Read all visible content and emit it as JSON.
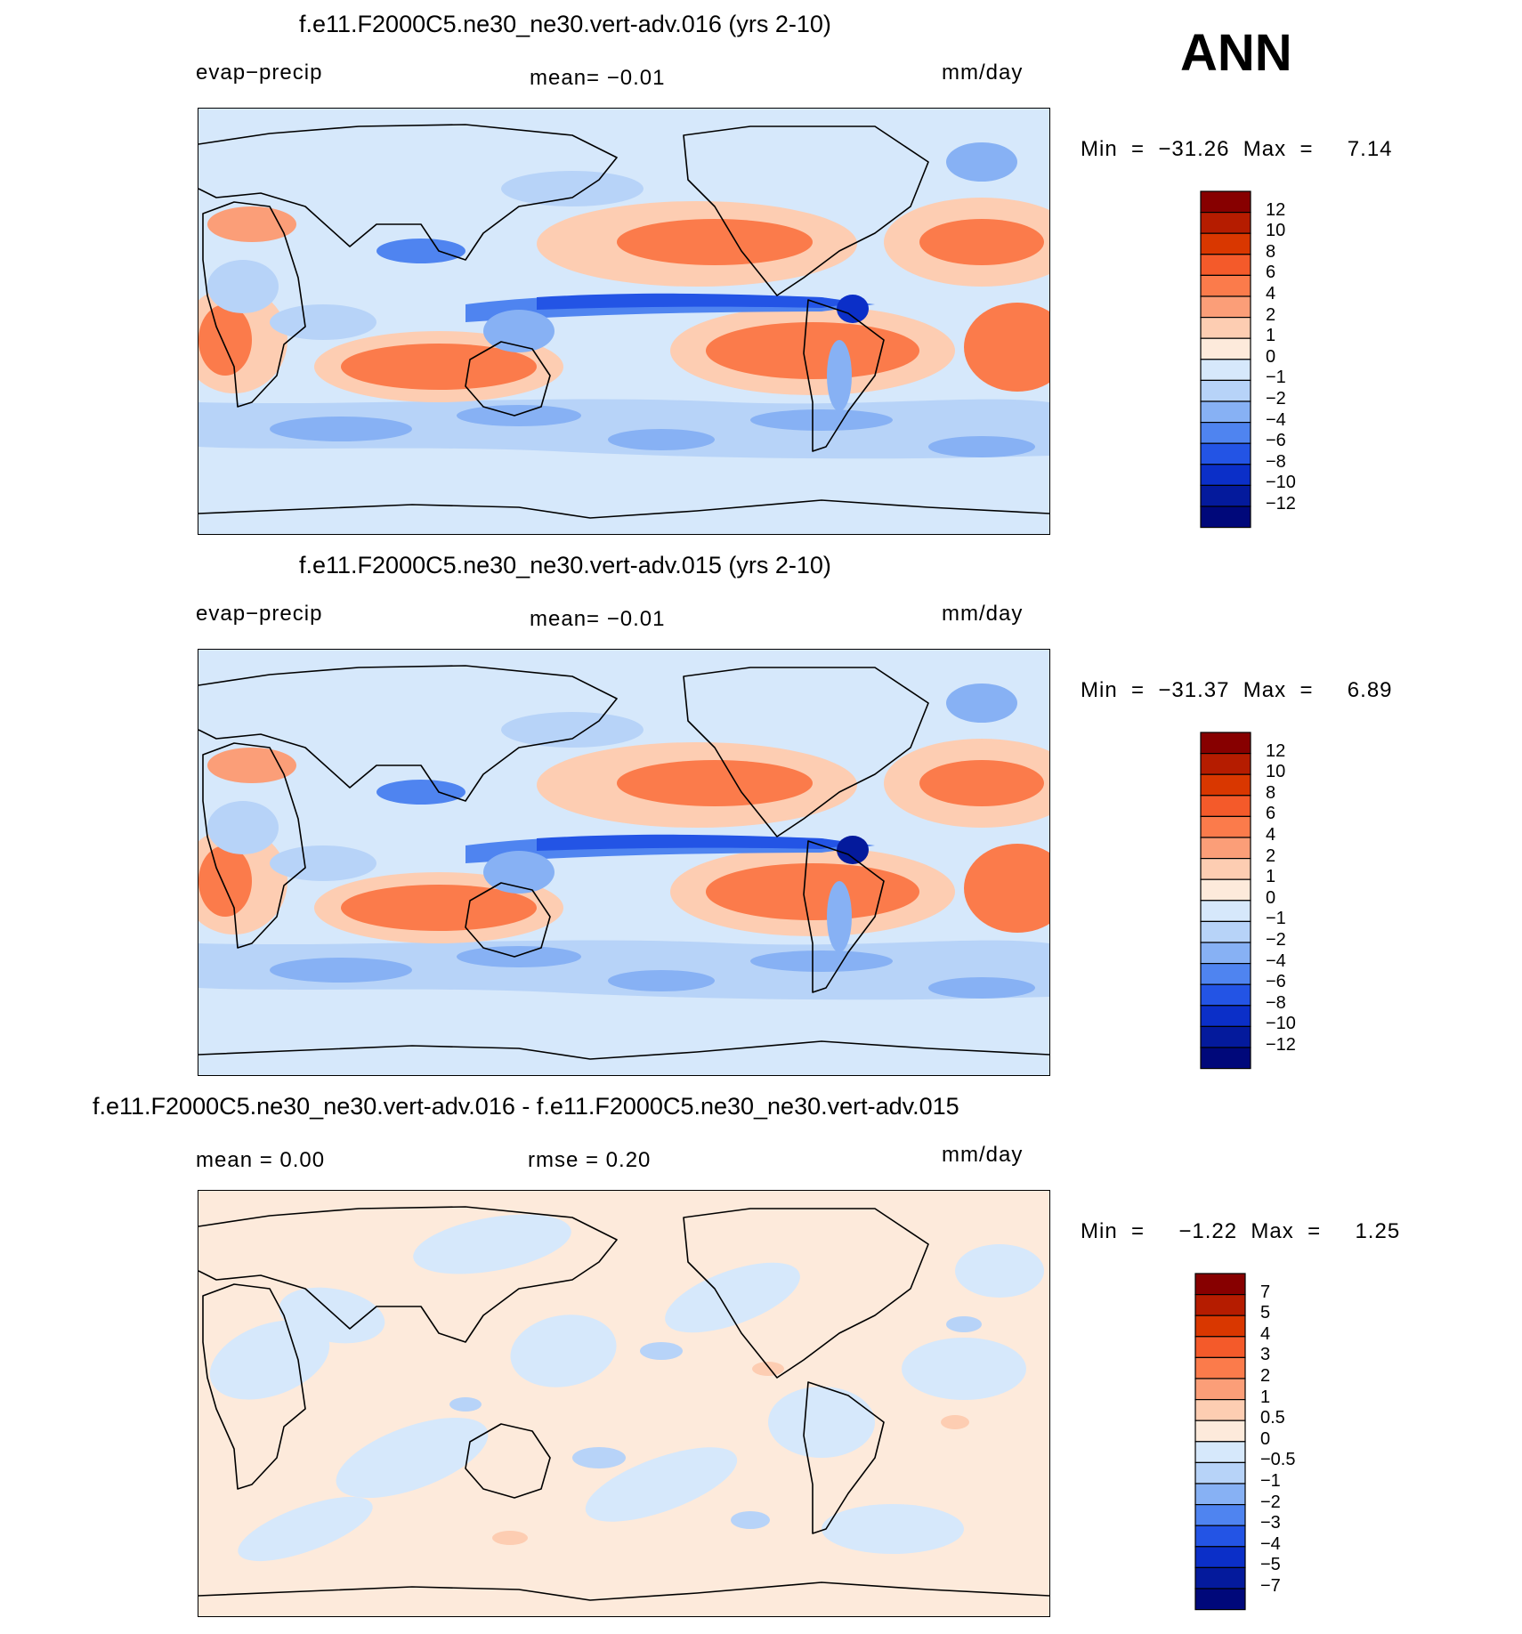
{
  "season": "ANN",
  "panels": [
    {
      "title": "f.e11.F2000C5.ne30_ne30.vert-adv.016 (yrs 2-10)",
      "left_label": "evap−precip",
      "center_label": "mean=   −0.01",
      "right_label": "mm/day",
      "minmax": "Min  =  −31.26  Max  =     7.14",
      "colorbar_labels": [
        "12",
        "10",
        "8",
        "6",
        "4",
        "2",
        "1",
        "0",
        "−1",
        "−2",
        "−4",
        "−6",
        "−8",
        "−10",
        "−12"
      ]
    },
    {
      "title": "f.e11.F2000C5.ne30_ne30.vert-adv.015 (yrs 2-10)",
      "left_label": "evap−precip",
      "center_label": "mean=   −0.01",
      "right_label": "mm/day",
      "minmax": "Min  =  −31.37  Max  =     6.89",
      "colorbar_labels": [
        "12",
        "10",
        "8",
        "6",
        "4",
        "2",
        "1",
        "0",
        "−1",
        "−2",
        "−4",
        "−6",
        "−8",
        "−10",
        "−12"
      ]
    },
    {
      "title": "f.e11.F2000C5.ne30_ne30.vert-adv.016 - f.e11.F2000C5.ne30_ne30.vert-adv.015",
      "left_label": "mean  =     0.00",
      "center_label": "rmse  =     0.20",
      "right_label": "mm/day",
      "minmax": "Min  =     −1.22  Max  =     1.25",
      "colorbar_labels": [
        "7",
        "5",
        "4",
        "3",
        "2",
        "1",
        "0.5",
        "0",
        "−0.5",
        "−1",
        "−2",
        "−3",
        "−4",
        "−5",
        "−7"
      ]
    }
  ],
  "colors": {
    "abs_scale": [
      "#870000",
      "#b51c00",
      "#d93700",
      "#f45a2a",
      "#fb7b4b",
      "#fb9e78",
      "#fdcdb2",
      "#fdeadb",
      "#d6e8fb",
      "#b7d3f8",
      "#87b1f4",
      "#4f84f0",
      "#2354e5",
      "#0b2fc8",
      "#041a9c",
      "#00087a"
    ],
    "diff_scale": [
      "#870000",
      "#b51c00",
      "#d93700",
      "#f45a2a",
      "#fb7b4b",
      "#fb9e78",
      "#fdcdb2",
      "#fdeadb",
      "#d6e8fb",
      "#b7d3f8",
      "#87b1f4",
      "#4f84f0",
      "#2354e5",
      "#0b2fc8",
      "#041a9c",
      "#00087a"
    ]
  }
}
